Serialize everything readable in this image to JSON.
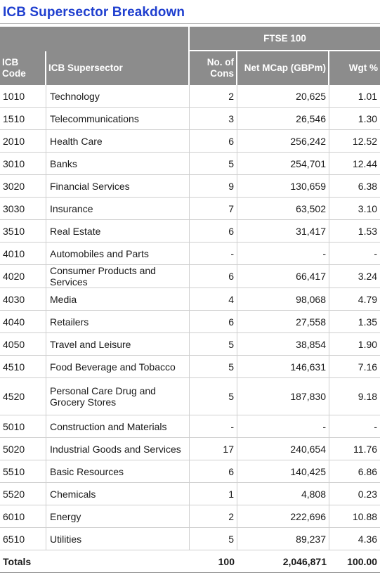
{
  "title": "ICB Supersector Breakdown",
  "group_header": "FTSE 100",
  "columns": {
    "code": "ICB Code",
    "supersector": "ICB Supersector",
    "cons_line1": "No. of",
    "cons_line2": "Cons",
    "mcap": "Net MCap (GBPm)",
    "wgt": "Wgt %"
  },
  "rows": [
    {
      "code": "1010",
      "name": "Technology",
      "cons": "2",
      "mcap": "20,625",
      "wgt": "1.01"
    },
    {
      "code": "1510",
      "name": "Telecommunications",
      "cons": "3",
      "mcap": "26,546",
      "wgt": "1.30"
    },
    {
      "code": "2010",
      "name": "Health Care",
      "cons": "6",
      "mcap": "256,242",
      "wgt": "12.52"
    },
    {
      "code": "3010",
      "name": "Banks",
      "cons": "5",
      "mcap": "254,701",
      "wgt": "12.44"
    },
    {
      "code": "3020",
      "name": "Financial Services",
      "cons": "9",
      "mcap": "130,659",
      "wgt": "6.38"
    },
    {
      "code": "3030",
      "name": "Insurance",
      "cons": "7",
      "mcap": "63,502",
      "wgt": "3.10"
    },
    {
      "code": "3510",
      "name": "Real Estate",
      "cons": "6",
      "mcap": "31,417",
      "wgt": "1.53"
    },
    {
      "code": "4010",
      "name": "Automobiles and Parts",
      "cons": "-",
      "mcap": "-",
      "wgt": "-"
    },
    {
      "code": "4020",
      "name": "Consumer Products and Services",
      "cons": "6",
      "mcap": "66,417",
      "wgt": "3.24"
    },
    {
      "code": "4030",
      "name": "Media",
      "cons": "4",
      "mcap": "98,068",
      "wgt": "4.79"
    },
    {
      "code": "4040",
      "name": "Retailers",
      "cons": "6",
      "mcap": "27,558",
      "wgt": "1.35"
    },
    {
      "code": "4050",
      "name": "Travel and Leisure",
      "cons": "5",
      "mcap": "38,854",
      "wgt": "1.90"
    },
    {
      "code": "4510",
      "name": "Food Beverage and Tobacco",
      "cons": "5",
      "mcap": "146,631",
      "wgt": "7.16"
    },
    {
      "code": "4520",
      "name": "Personal Care Drug and Grocery Stores",
      "cons": "5",
      "mcap": "187,830",
      "wgt": "9.18"
    },
    {
      "code": "5010",
      "name": "Construction and Materials",
      "cons": "-",
      "mcap": "-",
      "wgt": "-"
    },
    {
      "code": "5020",
      "name": "Industrial Goods and Services",
      "cons": "17",
      "mcap": "240,654",
      "wgt": "11.76"
    },
    {
      "code": "5510",
      "name": "Basic Resources",
      "cons": "6",
      "mcap": "140,425",
      "wgt": "6.86"
    },
    {
      "code": "5520",
      "name": "Chemicals",
      "cons": "1",
      "mcap": "4,808",
      "wgt": "0.23"
    },
    {
      "code": "6010",
      "name": "Energy",
      "cons": "2",
      "mcap": "222,696",
      "wgt": "10.88"
    },
    {
      "code": "6510",
      "name": "Utilities",
      "cons": "5",
      "mcap": "89,237",
      "wgt": "4.36"
    }
  ],
  "totals": {
    "label": "Totals",
    "cons": "100",
    "mcap": "2,046,871",
    "wgt": "100.00"
  },
  "colors": {
    "title": "#1f3fcf",
    "header_bg": "#8c8c8c"
  }
}
